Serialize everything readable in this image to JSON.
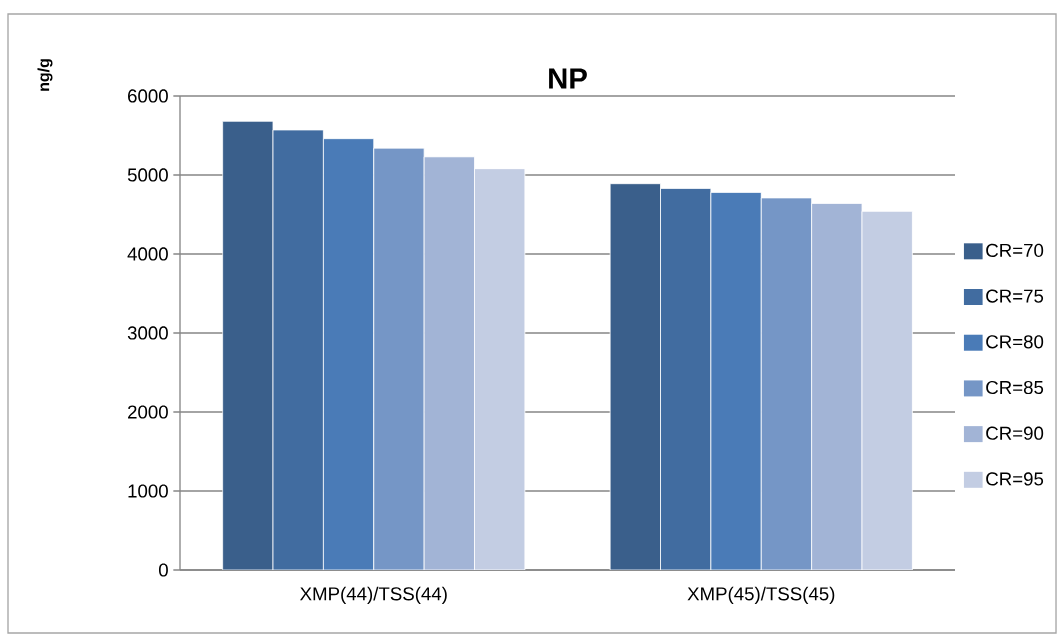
{
  "chart_data": {
    "type": "bar",
    "title": "NP",
    "ylabel": "ng/g",
    "categories": [
      "XMP(44)/TSS(44)",
      "XMP(45)/TSS(45)"
    ],
    "series": [
      {
        "name": "CR=70",
        "color": "#3a5f8b",
        "values": [
          5680,
          4890
        ]
      },
      {
        "name": "CR=75",
        "color": "#416ca0",
        "values": [
          5570,
          4830
        ]
      },
      {
        "name": "CR=80",
        "color": "#4a7bb7",
        "values": [
          5460,
          4780
        ]
      },
      {
        "name": "CR=85",
        "color": "#7596c6",
        "values": [
          5340,
          4710
        ]
      },
      {
        "name": "CR=90",
        "color": "#a2b4d6",
        "values": [
          5230,
          4640
        ]
      },
      {
        "name": "CR=95",
        "color": "#c3cde3",
        "values": [
          5080,
          4540
        ]
      }
    ],
    "ylim": [
      0,
      6000
    ],
    "yticks": [
      0,
      1000,
      2000,
      3000,
      4000,
      5000,
      6000
    ],
    "grid": "y",
    "legend": "right"
  }
}
